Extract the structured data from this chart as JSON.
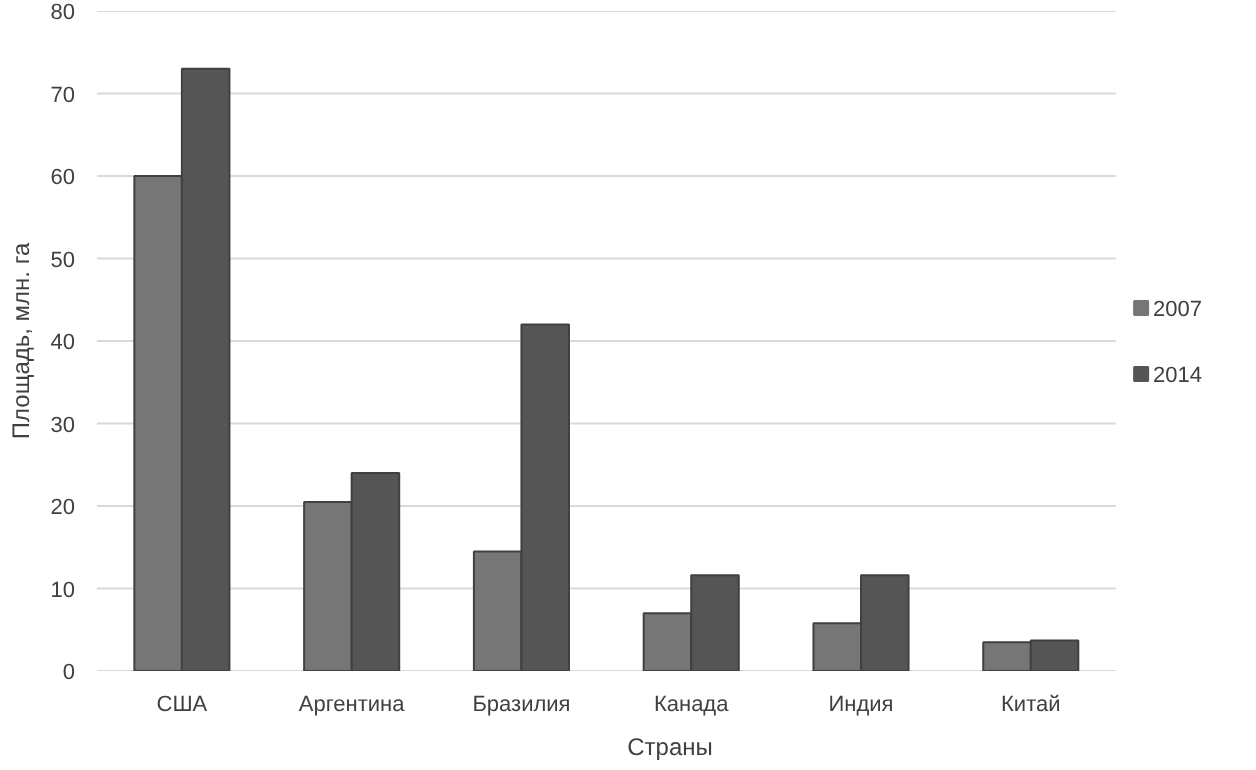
{
  "chart_data": {
    "type": "bar",
    "xlabel": "Страны",
    "ylabel": "Площадь, млн. га",
    "categories": [
      "США",
      "Аргентина",
      "Бразилия",
      "Канада",
      "Индия",
      "Китай"
    ],
    "series": [
      {
        "name": "2007",
        "color": "#767676",
        "values": [
          60,
          20.5,
          14.5,
          7,
          5.8,
          3.5
        ]
      },
      {
        "name": "2014",
        "color": "#555555",
        "values": [
          73,
          24,
          42,
          11.6,
          11.6,
          3.7
        ]
      }
    ],
    "ylim": [
      0,
      80
    ],
    "yticks": [
      0,
      10,
      20,
      30,
      40,
      50,
      60,
      70,
      80
    ],
    "grid": "y",
    "legend": "right"
  }
}
